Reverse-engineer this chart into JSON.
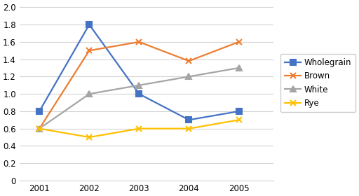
{
  "years": [
    2001,
    2002,
    2003,
    2004,
    2005
  ],
  "series": {
    "Wholegrain": [
      0.8,
      1.8,
      1.0,
      0.7,
      0.8
    ],
    "Brown": [
      0.6,
      1.5,
      1.6,
      1.38,
      1.6
    ],
    "White": [
      0.6,
      1.0,
      1.1,
      1.2,
      1.3
    ],
    "Rye": [
      0.6,
      0.5,
      0.6,
      0.6,
      0.7
    ]
  },
  "colors": {
    "Wholegrain": "#4472C4",
    "Brown": "#ED7D31",
    "White": "#A5A5A5",
    "Rye": "#FFC000"
  },
  "markers": {
    "Wholegrain": "s",
    "Brown": "x",
    "White": "^",
    "Rye": "x"
  },
  "ylim": [
    0,
    2.05
  ],
  "yticks": [
    0,
    0.2,
    0.4,
    0.6,
    0.8,
    1.0,
    1.2,
    1.4,
    1.6,
    1.8,
    2.0
  ],
  "background_color": "#ffffff",
  "grid_color": "#d3d3d3",
  "linewidth": 1.6,
  "markersize": 6
}
